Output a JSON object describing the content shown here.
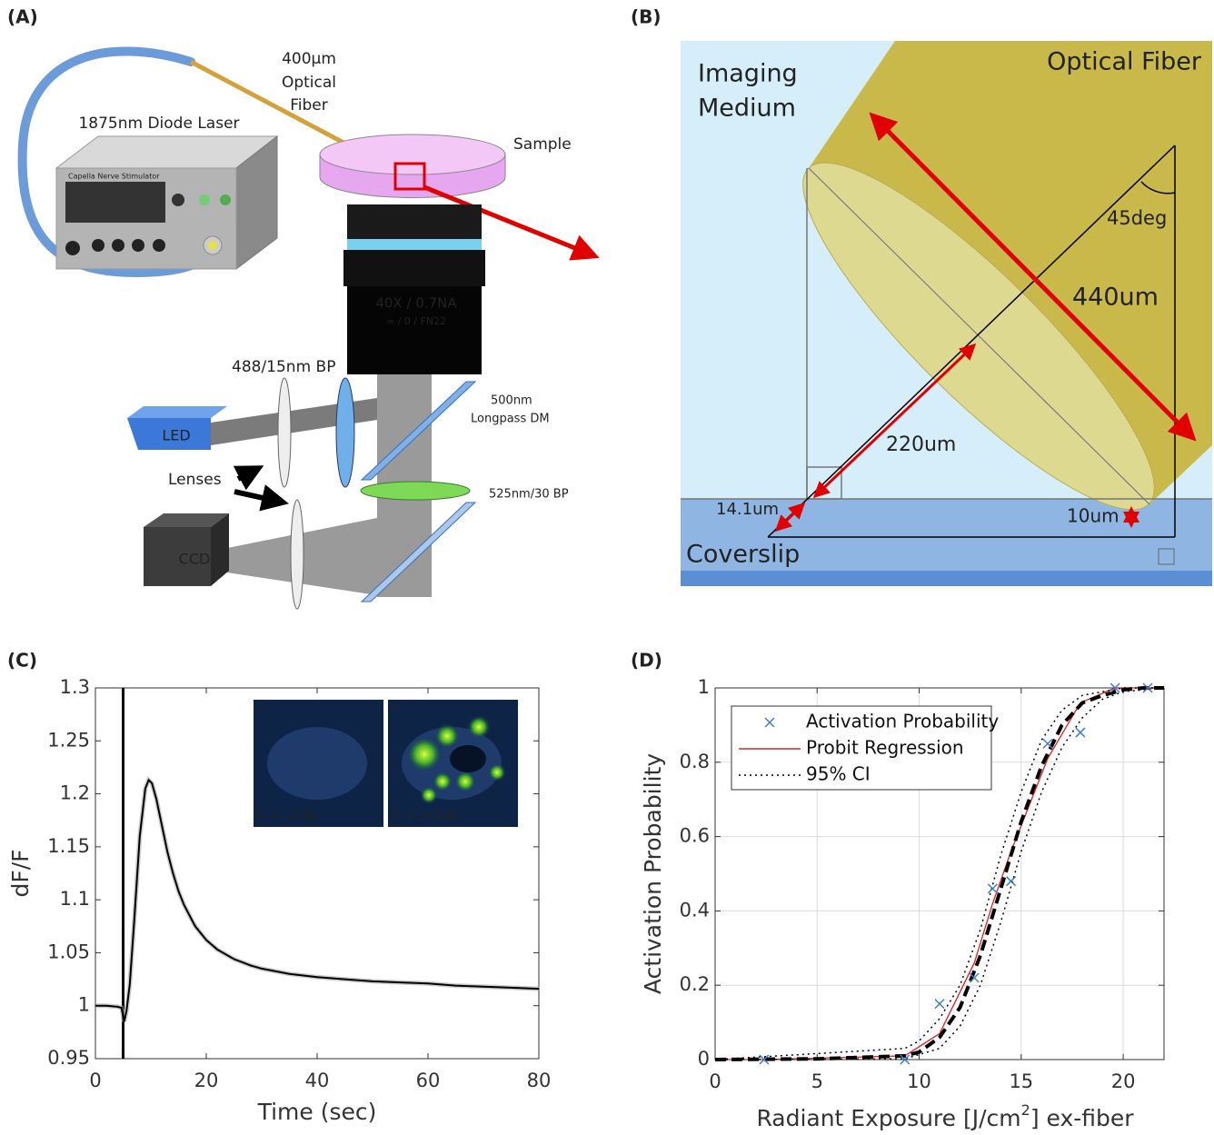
{
  "panels": [
    "(A)",
    "(B)",
    "(C)",
    "(D)"
  ],
  "diagram_a": {
    "fiber": [
      "400µm",
      "Optical",
      "Fiber"
    ],
    "laser": "1875nm Diode Laser",
    "device": "Capella Nerve Stimulator",
    "sample": "Sample",
    "objective": "40X / 0.7NA",
    "objective_spec": "∞ / 0 / FN22",
    "excitation_filter": "488/15nm BP",
    "dichroic": [
      "500nm",
      "Longpass  DM"
    ],
    "led": "LED",
    "lenses": "Lenses",
    "emission_filter": "525nm/30 BP",
    "ccd": "CCD"
  },
  "diagram_b": {
    "medium": [
      "Imaging",
      "Medium"
    ],
    "fiber": "Optical Fiber",
    "angle": "45deg",
    "diameter": "440um",
    "radius": "220um",
    "offset": "14.1um",
    "gap": "10um",
    "coverslip": "Coverslip"
  },
  "chart_data": [
    {
      "type": "line",
      "xlabel": "Time (sec)",
      "ylabel": "dF/F",
      "xlim": [
        0,
        80
      ],
      "ylim": [
        0.95,
        1.3
      ],
      "xticks": [
        0,
        20,
        40,
        60,
        80
      ],
      "yticks": [
        0.95,
        1,
        1.05,
        1.1,
        1.15,
        1.2,
        1.25,
        1.3
      ],
      "vlines": [
        5
      ],
      "series": [
        {
          "color": "#000000",
          "x": [
            0,
            2,
            4,
            4.7,
            5.2,
            5.6,
            6.2,
            7,
            8,
            9,
            9.6,
            10.2,
            11,
            12,
            13,
            14,
            15,
            16,
            18,
            20,
            22,
            25,
            28,
            30,
            35,
            40,
            45,
            50,
            55,
            60,
            65,
            70,
            75,
            80
          ],
          "values": [
            1.0,
            1.0,
            0.999,
            0.998,
            0.985,
            0.995,
            1.02,
            1.08,
            1.16,
            1.205,
            1.213,
            1.21,
            1.195,
            1.17,
            1.145,
            1.125,
            1.108,
            1.095,
            1.075,
            1.062,
            1.053,
            1.044,
            1.038,
            1.035,
            1.03,
            1.027,
            1.025,
            1.023,
            1.022,
            1.021,
            1.019,
            1.018,
            1.017,
            1.016
          ]
        }
      ],
      "insets": [
        {
          "label": "1",
          "caption": "t = -10s"
        },
        {
          "label": "2",
          "caption": "t = +10s"
        }
      ]
    },
    {
      "type": "line",
      "xlabel": [
        "Radiant Exposure [J/cm",
        "2",
        "] ex-fiber"
      ],
      "ylabel": "Activation Probability",
      "xlim": [
        0,
        22
      ],
      "ylim": [
        0,
        1
      ],
      "xticks": [
        0,
        5,
        10,
        15,
        20
      ],
      "yticks": [
        0,
        0.2,
        0.4,
        0.6,
        0.8,
        1
      ],
      "grid": true,
      "legend": "upper left",
      "series": [
        {
          "name": "Activation Probability",
          "type": "scatter",
          "color": "#3d7cc9",
          "x": [
            2.4,
            9.3,
            11,
            12.7,
            13.6,
            14.5,
            16.3,
            17.9,
            19.6,
            21.2
          ],
          "values": [
            0,
            0,
            0.15,
            0.22,
            0.46,
            0.48,
            0.85,
            0.88,
            1,
            1
          ]
        },
        {
          "name": "Probit Regression",
          "type": "line",
          "color": "#e02020",
          "x": [
            0,
            2.4,
            9.3,
            11,
            12.7,
            13.6,
            14.5,
            16.3,
            17.9,
            19.6,
            21.2,
            22
          ],
          "values": [
            0,
            0,
            0.01,
            0.07,
            0.26,
            0.42,
            0.56,
            0.81,
            0.96,
            1,
            1,
            1
          ]
        },
        {
          "name": "95% CI",
          "type": "line",
          "style": "dotted",
          "color": "#000000",
          "x": [
            0,
            9.3,
            10,
            11,
            12,
            13,
            14,
            15,
            16,
            17,
            18,
            19,
            20,
            22
          ],
          "values": [
            0,
            0.03,
            0.05,
            0.11,
            0.2,
            0.35,
            0.55,
            0.72,
            0.86,
            0.94,
            0.98,
            0.99,
            1,
            1
          ]
        },
        {
          "type": "line",
          "style": "dotted",
          "color": "#000000",
          "x": [
            0,
            9.3,
            11,
            12,
            13,
            14,
            15,
            16,
            17,
            18,
            19,
            20,
            22
          ],
          "values": [
            0,
            0.002,
            0.03,
            0.09,
            0.2,
            0.37,
            0.56,
            0.72,
            0.84,
            0.92,
            0.97,
            0.99,
            1
          ]
        },
        {
          "type": "line",
          "style": "dashed",
          "color": "#000000",
          "x": [
            0,
            5,
            9.3,
            10,
            11,
            12,
            13,
            14,
            15,
            16,
            17,
            18,
            19,
            20,
            21,
            22
          ],
          "values": [
            0,
            0.002,
            0.01,
            0.02,
            0.06,
            0.14,
            0.28,
            0.46,
            0.64,
            0.79,
            0.9,
            0.96,
            0.98,
            0.995,
            1,
            1
          ]
        }
      ]
    }
  ]
}
